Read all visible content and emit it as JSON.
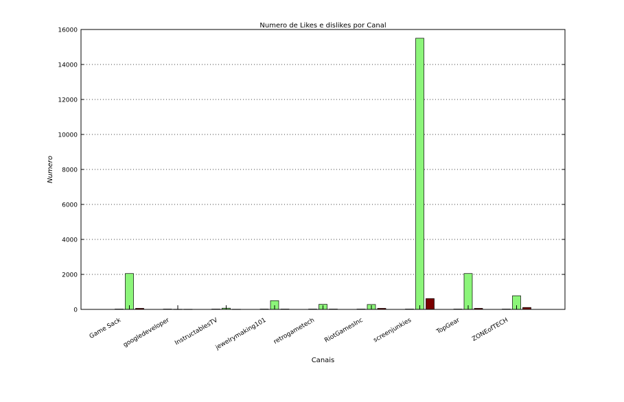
{
  "chart_data": {
    "type": "bar",
    "title": "Numero de Likes e dislikes por Canal",
    "xlabel": "Canais",
    "ylabel": "Numero",
    "ylim": [
      0,
      16000
    ],
    "yticks": [
      0,
      2000,
      4000,
      6000,
      8000,
      10000,
      12000,
      14000,
      16000
    ],
    "grid": "y-dotted",
    "legend": "none",
    "categories": [
      "Game Sack",
      "googledeveloper",
      "InstructablesTV",
      "jewelrymaking101",
      "retrogametech",
      "RiotGamesInc",
      "screenjunkies",
      "TopGear",
      "ZONEofTECH"
    ],
    "series": [
      {
        "values": [
          20,
          20,
          20,
          20,
          20,
          20,
          20,
          20,
          20
        ],
        "color": "#1f2a8f"
      },
      {
        "values": [
          2050,
          10,
          70,
          500,
          290,
          280,
          15500,
          2050,
          780
        ],
        "color": "#8cf57a"
      },
      {
        "values": [
          60,
          10,
          10,
          20,
          20,
          60,
          620,
          60,
          110
        ],
        "color": "#7a0000"
      }
    ]
  }
}
